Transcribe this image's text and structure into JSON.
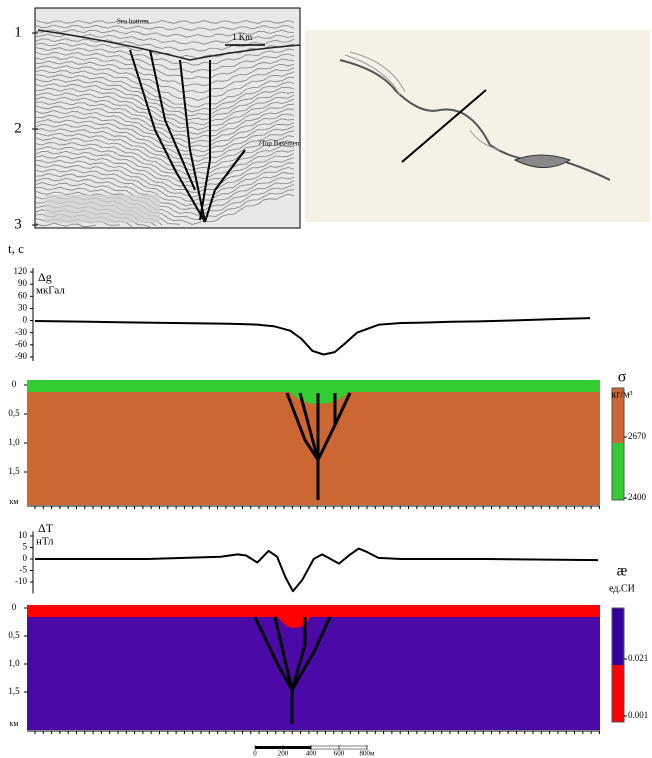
{
  "seismic": {
    "yticks": [
      1,
      2,
      3
    ],
    "ylabel": "t, c",
    "annotations": [
      "Sea bottom",
      "1 Km",
      "?Top Basement"
    ]
  },
  "chart_data": [
    {
      "type": "line",
      "title": "Δg",
      "ylabel": "мкГал",
      "color": "#000000",
      "x": [
        0,
        5,
        10,
        15,
        20,
        25,
        30,
        35,
        40,
        43,
        46,
        48,
        50,
        52,
        54,
        56,
        58,
        62,
        66,
        70,
        75,
        80,
        85,
        90,
        95,
        100
      ],
      "values": [
        -1,
        -2,
        -3,
        -4,
        -5,
        -6,
        -7,
        -8,
        -10,
        -14,
        -25,
        -45,
        -75,
        -84,
        -78,
        -55,
        -30,
        -10,
        -6,
        -5,
        -3,
        -2,
        0,
        2,
        4,
        6
      ],
      "xlim": [
        0,
        100
      ],
      "ylim": [
        -100,
        130
      ],
      "yticks": [
        120,
        90,
        60,
        30,
        0,
        -30,
        -60,
        -90
      ]
    },
    {
      "type": "line",
      "title": "ΔT",
      "ylabel": "нТл",
      "color": "#000000",
      "x": [
        0,
        20,
        33,
        36,
        37.5,
        39.5,
        41.5,
        43,
        44.5,
        45.8,
        47.5,
        49.5,
        51,
        52.5,
        54,
        56,
        57.5,
        59,
        61,
        65,
        80,
        100
      ],
      "values": [
        0,
        0,
        1,
        2,
        1.5,
        -1.5,
        3.5,
        1,
        -8,
        -14,
        -9,
        0,
        2,
        0,
        -2,
        2,
        4.5,
        3,
        0.5,
        0,
        0,
        -0.5
      ],
      "xlim": [
        0,
        100
      ],
      "ylim": [
        -15,
        12
      ],
      "yticks": [
        10,
        5,
        0,
        -5,
        -10
      ]
    }
  ],
  "density_section": {
    "depth_ticks": [
      0,
      {
        "value": 0.5,
        "label": "0,5"
      },
      {
        "value": 1.0,
        "label": "1,0"
      },
      {
        "value": 1.5,
        "label": "1,5"
      }
    ],
    "depth_unit": "км",
    "layer_colors": [
      "#33cc33",
      "#cc6633"
    ],
    "colorbar": {
      "symbol": "σ",
      "unit": "кг/м³",
      "ticks": [
        2670,
        2400
      ],
      "colors": [
        "#cc6633",
        "#33cc33"
      ]
    }
  },
  "magnetic_section": {
    "depth_ticks": [
      0,
      {
        "value": 0.5,
        "label": "0,5"
      },
      {
        "value": 1.0,
        "label": "1,0"
      },
      {
        "value": 1.5,
        "label": "1,5"
      }
    ],
    "depth_unit": "км",
    "layer_colors": [
      "#ff0000",
      "#4b0aa8"
    ],
    "colorbar": {
      "symbol": "æ",
      "unit": "ед.СИ",
      "ticks": [
        0.021,
        0.001
      ],
      "colors": [
        "#33009e",
        "#ff0000"
      ]
    }
  },
  "scale_bar": {
    "ticks": [
      0,
      200,
      400,
      600,
      {
        "value": 800,
        "label": "800м"
      }
    ]
  }
}
